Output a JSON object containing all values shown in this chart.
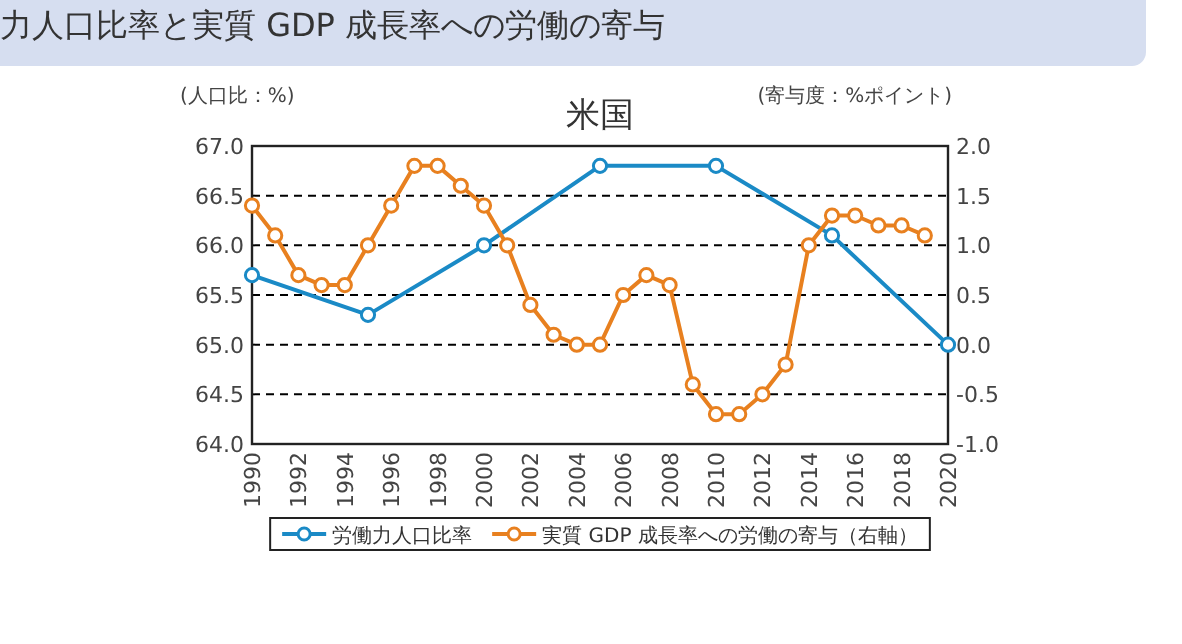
{
  "chart_data": {
    "type": "line",
    "title": "米国",
    "ylabel": "(人口比：%)",
    "y2label": "(寄与度：%ポイント)",
    "annotations": [
      "力人口比率と実質 GDP 成長率への労働の寄与"
    ],
    "xlim": [
      1990,
      2020
    ],
    "xticks": [
      1990,
      1992,
      1994,
      1996,
      1998,
      2000,
      2002,
      2004,
      2006,
      2008,
      2010,
      2012,
      2014,
      2016,
      2018,
      2020
    ],
    "ylim": [
      64,
      67
    ],
    "yticks": [
      {
        "value": 64,
        "label": "64.0"
      },
      64.5,
      {
        "value": 65,
        "label": "65.0"
      },
      65.5,
      {
        "value": 66,
        "label": "66.0"
      },
      66.5,
      {
        "value": 67,
        "label": "67.0"
      }
    ],
    "y2lim": [
      -1,
      2
    ],
    "y2ticks": [
      {
        "value": -1,
        "label": "-1.0"
      },
      -0.5,
      {
        "value": 0,
        "label": "0.0"
      },
      0.5,
      {
        "value": 1,
        "label": "1.0"
      },
      1.5,
      {
        "value": 2,
        "label": "2.0"
      }
    ],
    "grid": "y",
    "legend": "bottom",
    "marker": "circle",
    "line_style": "solid",
    "series": [
      {
        "name": "労働力人口比率",
        "color": "#1a8ac6",
        "x": [
          1990,
          1995,
          2000,
          2005,
          2010,
          2015,
          2020
        ],
        "values": [
          65.7,
          65.3,
          66.0,
          66.8,
          66.8,
          66.1,
          65.0
        ]
      },
      {
        "name": "実質 GDP 成長率への労働の寄与（右軸）",
        "color": "#e8801f",
        "axis": "y2",
        "x": [
          1990,
          1991,
          1992,
          1993,
          1994,
          1995,
          1996,
          1997,
          1998,
          1999,
          2000,
          2001,
          2002,
          2003,
          2004,
          2005,
          2006,
          2007,
          2008,
          2009,
          2010,
          2011,
          2012,
          2013,
          2014,
          2015,
          2016,
          2017,
          2018,
          2019
        ],
        "values": [
          1.4,
          1.1,
          0.7,
          0.6,
          0.6,
          1.0,
          1.4,
          1.8,
          1.8,
          1.6,
          1.4,
          1.0,
          0.4,
          0.1,
          0.0,
          0.0,
          0.5,
          0.7,
          0.6,
          -0.4,
          -0.7,
          -0.7,
          -0.5,
          -0.2,
          1.0,
          1.3,
          1.3,
          1.2,
          1.2,
          1.1
        ]
      }
    ]
  }
}
